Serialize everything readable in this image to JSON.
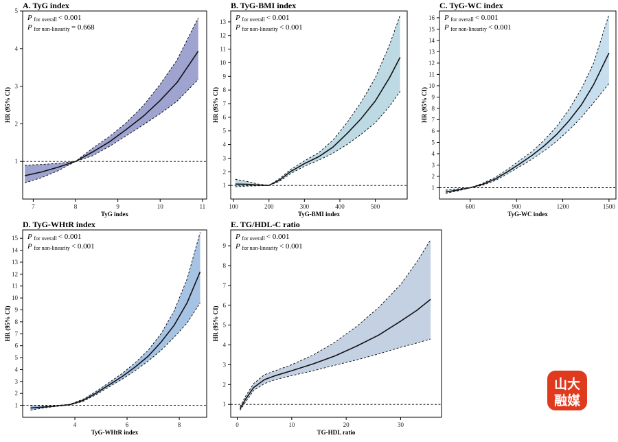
{
  "figure": {
    "logo": {
      "line1": "山大",
      "line2": "融媒",
      "color": "#e03a1e"
    }
  },
  "chart_data": [
    {
      "id": "A",
      "type": "line",
      "title": "A. TyG index",
      "stats": [
        {
          "p": "P",
          "sub": "for overall",
          "rel": "< 0.001"
        },
        {
          "p": "P",
          "sub": "for non-linearity",
          "rel": "= 0.668"
        }
      ],
      "xlabel": "TyG index",
      "ylabel": "HR (95% CI)",
      "xlim": [
        6.75,
        11.1
      ],
      "ylim": [
        0.0,
        5.0
      ],
      "xticks": [
        7,
        8,
        9,
        10,
        11
      ],
      "yticks": [
        1,
        2,
        3,
        4,
        5
      ],
      "ref_y": 1,
      "fill": "#9ea3d0",
      "series": [
        {
          "role": "estimate",
          "x": [
            6.8,
            7.2,
            7.6,
            8.0,
            8.4,
            8.8,
            9.2,
            9.6,
            10.0,
            10.4,
            10.9
          ],
          "y": [
            0.62,
            0.72,
            0.85,
            1.0,
            1.25,
            1.52,
            1.85,
            2.2,
            2.62,
            3.1,
            3.93
          ]
        },
        {
          "role": "lower",
          "x": [
            6.8,
            7.2,
            7.6,
            8.0,
            8.4,
            8.8,
            9.2,
            9.6,
            10.0,
            10.4,
            10.9
          ],
          "y": [
            0.43,
            0.57,
            0.76,
            1.0,
            1.15,
            1.4,
            1.68,
            1.97,
            2.27,
            2.6,
            3.18
          ]
        },
        {
          "role": "upper",
          "x": [
            6.8,
            7.2,
            7.6,
            8.0,
            8.4,
            8.8,
            9.2,
            9.6,
            10.0,
            10.4,
            10.9
          ],
          "y": [
            0.9,
            0.92,
            0.95,
            1.0,
            1.35,
            1.66,
            2.03,
            2.48,
            3.05,
            3.7,
            4.82
          ]
        }
      ]
    },
    {
      "id": "B",
      "type": "line",
      "title": "B. TyG-BMI index",
      "stats": [
        {
          "p": "P",
          "sub": "for overall",
          "rel": "< 0.001"
        },
        {
          "p": "P",
          "sub": "for non-linearity",
          "rel": "< 0.001"
        }
      ],
      "xlabel": "TyG-BMI index",
      "ylabel": "HR (95% CI)",
      "xlim": [
        92,
        590
      ],
      "ylim": [
        0.0,
        13.8
      ],
      "xticks": [
        100,
        200,
        300,
        400,
        500
      ],
      "yticks": [
        1,
        2,
        3,
        4,
        5,
        6,
        7,
        8,
        9,
        10,
        11,
        12,
        13
      ],
      "ref_y": 1,
      "fill": "#bddae4",
      "series": [
        {
          "role": "estimate",
          "x": [
            105,
            140,
            170,
            200,
            230,
            260,
            300,
            340,
            380,
            420,
            460,
            500,
            540,
            570
          ],
          "y": [
            1.1,
            1.08,
            1.02,
            1.0,
            1.4,
            2.0,
            2.6,
            3.1,
            3.8,
            4.8,
            5.9,
            7.2,
            8.9,
            10.4
          ]
        },
        {
          "role": "lower",
          "x": [
            105,
            140,
            170,
            200,
            230,
            260,
            300,
            340,
            380,
            420,
            460,
            500,
            540,
            570
          ],
          "y": [
            0.9,
            0.95,
            0.97,
            1.0,
            1.3,
            1.85,
            2.4,
            2.85,
            3.35,
            4.0,
            4.75,
            5.6,
            6.8,
            7.9
          ]
        },
        {
          "role": "upper",
          "x": [
            105,
            140,
            170,
            200,
            230,
            260,
            300,
            340,
            380,
            420,
            460,
            500,
            540,
            570
          ],
          "y": [
            1.45,
            1.28,
            1.1,
            1.0,
            1.5,
            2.15,
            2.8,
            3.4,
            4.3,
            5.6,
            7.1,
            8.9,
            11.3,
            13.5
          ]
        }
      ]
    },
    {
      "id": "C",
      "type": "line",
      "title": "C. TyG-WC index",
      "stats": [
        {
          "p": "P",
          "sub": "for overall",
          "rel": "< 0.001"
        },
        {
          "p": "P",
          "sub": "for non-linearity",
          "rel": "< 0.001"
        }
      ],
      "xlabel": "TyG-WC index",
      "ylabel": "HR (95% CI)",
      "xlim": [
        400,
        1545
      ],
      "ylim": [
        0.0,
        16.6
      ],
      "xticks": [
        600,
        900,
        1200,
        1500
      ],
      "yticks": [
        1,
        2,
        3,
        4,
        5,
        6,
        7,
        8,
        9,
        10,
        11,
        12,
        13,
        14,
        15,
        16
      ],
      "ref_y": 1,
      "fill": "#c6deee",
      "series": [
        {
          "role": "estimate",
          "x": [
            440,
            520,
            600,
            680,
            760,
            840,
            920,
            1000,
            1080,
            1160,
            1240,
            1320,
            1400,
            1500
          ],
          "y": [
            0.62,
            0.8,
            1.0,
            1.3,
            1.75,
            2.4,
            3.1,
            3.85,
            4.7,
            5.7,
            6.9,
            8.3,
            10.1,
            12.9
          ]
        },
        {
          "role": "lower",
          "x": [
            440,
            520,
            600,
            680,
            760,
            840,
            920,
            1000,
            1080,
            1160,
            1240,
            1320,
            1400,
            1500
          ],
          "y": [
            0.5,
            0.72,
            1.0,
            1.22,
            1.62,
            2.22,
            2.86,
            3.52,
            4.26,
            5.1,
            6.08,
            7.2,
            8.5,
            10.2
          ]
        },
        {
          "role": "upper",
          "x": [
            440,
            520,
            600,
            680,
            760,
            840,
            920,
            1000,
            1080,
            1160,
            1240,
            1320,
            1400,
            1500
          ],
          "y": [
            0.78,
            0.9,
            1.0,
            1.38,
            1.9,
            2.6,
            3.4,
            4.2,
            5.2,
            6.4,
            7.9,
            9.7,
            12.0,
            16.3
          ]
        }
      ]
    },
    {
      "id": "D",
      "type": "line",
      "title": "D. TyG-WHtR index",
      "stats": [
        {
          "p": "P",
          "sub": "for overall",
          "rel": "< 0.001"
        },
        {
          "p": "P",
          "sub": "for non-linearity",
          "rel": "< 0.001"
        }
      ],
      "xlabel": "TyG-WHtR index",
      "ylabel": "HR (95% CI)",
      "xlim": [
        2.0,
        9.05
      ],
      "ylim": [
        0.0,
        15.7
      ],
      "xticks": [
        4,
        6,
        8
      ],
      "yticks": [
        1,
        2,
        3,
        4,
        5,
        6,
        7,
        8,
        9,
        10,
        11,
        12,
        13,
        14,
        15
      ],
      "ref_y": 1,
      "fill": "#a7c3e4",
      "series": [
        {
          "role": "estimate",
          "x": [
            2.3,
            2.8,
            3.3,
            3.8,
            4.3,
            4.8,
            5.3,
            5.8,
            6.3,
            6.8,
            7.3,
            7.8,
            8.3,
            8.8
          ],
          "y": [
            0.78,
            0.85,
            0.95,
            1.05,
            1.4,
            2.0,
            2.7,
            3.4,
            4.2,
            5.1,
            6.3,
            7.7,
            9.6,
            12.2
          ]
        },
        {
          "role": "lower",
          "x": [
            2.3,
            2.8,
            3.3,
            3.8,
            4.3,
            4.8,
            5.3,
            5.8,
            6.3,
            6.8,
            7.3,
            7.8,
            8.3,
            8.8
          ],
          "y": [
            0.6,
            0.78,
            0.92,
            1.03,
            1.32,
            1.88,
            2.53,
            3.18,
            3.9,
            4.7,
            5.6,
            6.7,
            7.9,
            9.6
          ]
        },
        {
          "role": "upper",
          "x": [
            2.3,
            2.8,
            3.3,
            3.8,
            4.3,
            4.8,
            5.3,
            5.8,
            6.3,
            6.8,
            7.3,
            7.8,
            8.3,
            8.8
          ],
          "y": [
            1.0,
            0.95,
            1.0,
            1.08,
            1.5,
            2.14,
            2.9,
            3.65,
            4.55,
            5.6,
            7.0,
            8.9,
            11.6,
            15.5
          ]
        }
      ]
    },
    {
      "id": "E",
      "type": "line",
      "title": "E. TG/HDL-C ratio",
      "stats": [
        {
          "p": "P",
          "sub": "for overall",
          "rel": "< 0.001"
        },
        {
          "p": "P",
          "sub": "for non-linearity",
          "rel": "< 0.001"
        }
      ],
      "xlabel": "TG-HDL ratio",
      "ylabel": "HR (95% CI)",
      "xlim": [
        -1.2,
        37.5
      ],
      "ylim": [
        0.35,
        9.8
      ],
      "xticks": [
        0,
        10,
        20,
        30
      ],
      "yticks": [
        1,
        2,
        3,
        4,
        5,
        6,
        7,
        8,
        9
      ],
      "ref_y": 1,
      "fill": "#c3d1e3",
      "series": [
        {
          "role": "estimate",
          "x": [
            0.5,
            1.5,
            3,
            5,
            7,
            10,
            14,
            18,
            22,
            26,
            30,
            33,
            35.5
          ],
          "y": [
            0.78,
            1.25,
            1.85,
            2.25,
            2.45,
            2.7,
            3.05,
            3.45,
            3.95,
            4.5,
            5.2,
            5.75,
            6.3
          ]
        },
        {
          "role": "lower",
          "x": [
            0.5,
            1.5,
            3,
            5,
            7,
            10,
            14,
            18,
            22,
            26,
            30,
            33,
            35.5
          ],
          "y": [
            0.7,
            1.1,
            1.7,
            2.05,
            2.25,
            2.45,
            2.7,
            2.98,
            3.25,
            3.55,
            3.88,
            4.1,
            4.3
          ]
        },
        {
          "role": "upper",
          "x": [
            0.5,
            1.5,
            3,
            5,
            7,
            10,
            14,
            18,
            22,
            26,
            30,
            33,
            35.5
          ],
          "y": [
            0.88,
            1.4,
            2.05,
            2.5,
            2.7,
            3.0,
            3.5,
            4.15,
            4.95,
            5.9,
            7.05,
            8.2,
            9.3
          ]
        }
      ]
    }
  ]
}
